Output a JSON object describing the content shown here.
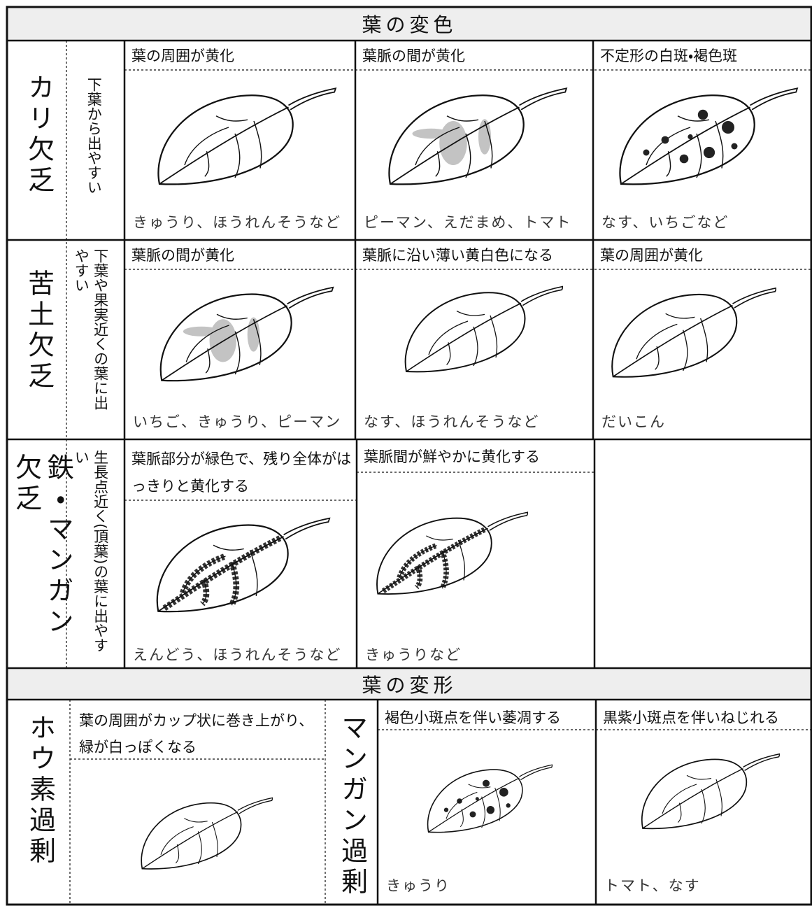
{
  "sections": [
    {
      "title": "葉の変色",
      "rows": [
        {
          "label": "カリ欠乏",
          "note": "下葉から出やすい",
          "cells": [
            {
              "symptom": "葉の周囲が黄化",
              "crops": "きゅうり、ほうれんそうなど"
            },
            {
              "symptom": "葉脈の間が黄化",
              "crops": "ピーマン、えだまめ、トマト"
            },
            {
              "symptom": "不定形の白斑・褐色斑",
              "crops": "なす、いちごなど"
            }
          ]
        },
        {
          "label": "苦土欠乏",
          "note": "下葉や果実近くの葉に出やすい",
          "cells": [
            {
              "symptom": "葉脈の間が黄化",
              "crops": "いちご、きゅうり、ピーマン"
            },
            {
              "symptom": "葉脈に沿い薄い黄白色になる",
              "crops": "なす、ほうれんそうなど"
            },
            {
              "symptom": "葉の周囲が黄化",
              "crops": "だいこん"
            }
          ]
        },
        {
          "label": "鉄・マンガン欠乏",
          "note": "生長点近く(頂葉)の葉に出やすい",
          "cells": [
            {
              "symptom": "葉脈部分が緑色で、残り全体がはっきりと黄化する",
              "crops": "えんどう、ほうれんそうなど"
            },
            {
              "symptom": "葉脈間が鮮やかに黄化する",
              "crops": "きゅうりなど"
            }
          ]
        }
      ]
    },
    {
      "title": "葉の変形",
      "rows": [
        {
          "label": "ホウ素過剰",
          "cells": [
            {
              "symptom": "葉の周囲がカップ状に巻き上がり、緑が白っぽくなる"
            }
          ]
        },
        {
          "label": "マンガン過剰",
          "cells": [
            {
              "symptom": "褐色小斑点を伴い萎凋する",
              "crops": "きゅうり"
            },
            {
              "symptom": "黒紫小斑点を伴いねじれる",
              "crops": "トマト、なす"
            }
          ]
        }
      ]
    }
  ]
}
